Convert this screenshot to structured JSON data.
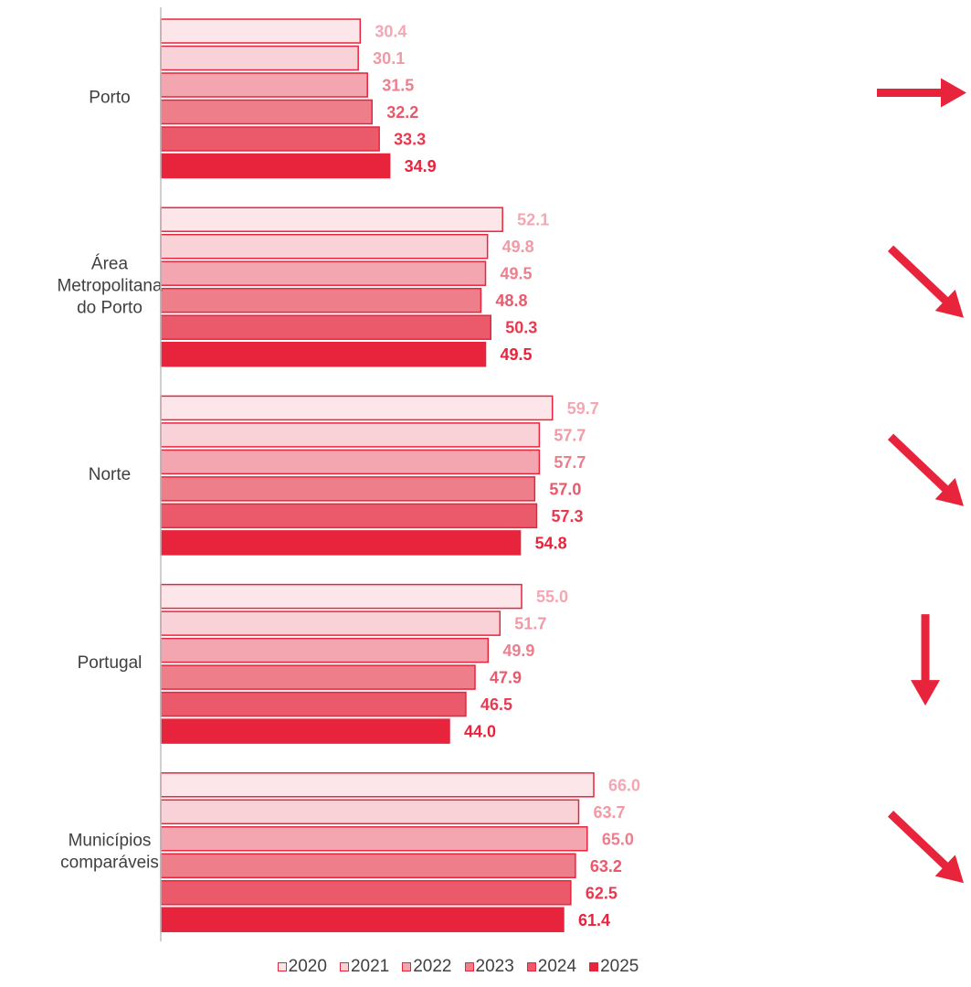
{
  "chart_data": {
    "type": "bar",
    "orientation": "horizontal",
    "categories": [
      "Porto",
      "Área Metropolitana do Porto",
      "Norte",
      "Portugal",
      "Municípios comparáveis"
    ],
    "category_lines": [
      [
        "Porto"
      ],
      [
        "Área",
        "Metropolitana",
        "do Porto"
      ],
      [
        "Norte"
      ],
      [
        "Portugal"
      ],
      [
        "Municípios",
        "comparáveis"
      ]
    ],
    "series": [
      {
        "name": "2020",
        "color": "#fde6ea",
        "label_color": "#f4a7b2",
        "values": [
          30.4,
          52.1,
          59.7,
          55.0,
          66.0
        ]
      },
      {
        "name": "2021",
        "color": "#f9d2d8",
        "label_color": "#f19aa6",
        "values": [
          30.1,
          49.8,
          57.7,
          51.7,
          63.7
        ]
      },
      {
        "name": "2022",
        "color": "#f3a5b0",
        "label_color": "#ec7f8e",
        "values": [
          31.5,
          49.5,
          57.7,
          49.9,
          65.0
        ]
      },
      {
        "name": "2023",
        "color": "#ee7e89",
        "label_color": "#e85a6c",
        "values": [
          32.2,
          48.8,
          57.0,
          47.9,
          63.2
        ]
      },
      {
        "name": "2024",
        "color": "#ea5a6b",
        "label_color": "#e63a50",
        "values": [
          33.3,
          50.3,
          57.3,
          46.5,
          62.5
        ]
      },
      {
        "name": "2025",
        "color": "#e8243c",
        "label_color": "#e8243c",
        "values": [
          34.9,
          49.5,
          54.8,
          44.0,
          61.4
        ]
      }
    ],
    "value_labels": [
      [
        "30.4",
        "52.1",
        "59.7",
        "55.0",
        "66.0"
      ],
      [
        "30.1",
        "49.8",
        "57.7",
        "51.7",
        "63.7"
      ],
      [
        "31.5",
        "49.5",
        "57.7",
        "49.9",
        "65.0"
      ],
      [
        "32.2",
        "48.8",
        "57.0",
        "47.9",
        "63.2"
      ],
      [
        "33.3",
        "50.3",
        "57.3",
        "46.5",
        "62.5"
      ],
      [
        "34.9",
        "49.5",
        "54.8",
        "44.0",
        "61.4"
      ]
    ],
    "trend_arrows": [
      "right",
      "down-right",
      "down-right",
      "down",
      "down-right"
    ],
    "xlim": [
      0,
      66.0
    ],
    "legend_position": "bottom",
    "grid": false,
    "title": "",
    "xlabel": "",
    "ylabel": ""
  },
  "colors": {
    "accent": "#e8243c",
    "bar_border": "#e8243c",
    "axis": "#bfbfbf",
    "text": "#404040"
  }
}
